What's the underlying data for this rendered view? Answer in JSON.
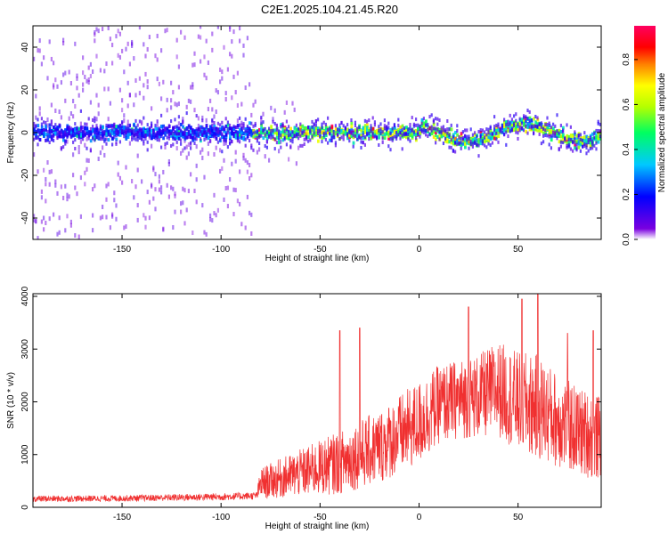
{
  "title": "C2E1.2025.104.21.45.R20",
  "colors": {
    "snr_line": "#f03030",
    "axis": "#000000",
    "background": "#ffffff"
  },
  "chart_data": [
    {
      "type": "heatmap",
      "xlabel": "Height of straight line (km)",
      "ylabel": "Frequency (Hz)",
      "xlim": [
        -195,
        92
      ],
      "ylim": [
        -50,
        50
      ],
      "xticks": [
        -150,
        -100,
        -50,
        0,
        50
      ],
      "yticks": [
        -40,
        -20,
        0,
        20,
        40
      ],
      "grid": false,
      "colorbar": {
        "label": "Normalized spectral amplitude",
        "range": [
          0,
          0.95
        ],
        "ticks": [
          "0.0",
          "0.2",
          "0.4",
          "0.6",
          "0.8"
        ],
        "colormap": "rainbow (violet→blue→cyan→green→yellow→red→magenta)",
        "placement": "right"
      },
      "features": [
        {
          "description_x_range": [
            -195,
            -85
          ],
          "band_hz": [
            -5,
            5
          ],
          "amplitude_level": 0.25,
          "scatter_spread_hz": 50
        },
        {
          "description_x_range": [
            -85,
            92
          ],
          "band_hz": [
            -5,
            5
          ],
          "amplitude_level": 0.55,
          "scatter_spread_hz": 15
        }
      ]
    },
    {
      "type": "line",
      "xlabel": "Height of straight line (km)",
      "ylabel": "SNR (10 * v/v)",
      "xlim": [
        -195,
        92
      ],
      "ylim": [
        0,
        4050
      ],
      "xticks": [
        -150,
        -100,
        -50,
        0,
        50
      ],
      "yticks": [
        0,
        1000,
        2000,
        3000,
        4000
      ],
      "grid": false,
      "series": [
        {
          "color": "#f03030",
          "envelope_x": [
            -195,
            -150,
            -100,
            -82,
            -80,
            -60,
            -40,
            -20,
            0,
            10,
            20,
            30,
            40,
            50,
            60,
            70,
            80,
            92
          ],
          "envelope_mean": [
            160,
            170,
            200,
            220,
            450,
            650,
            850,
            1150,
            1600,
            1950,
            2050,
            2100,
            2250,
            2000,
            1900,
            1650,
            1450,
            1300
          ],
          "envelope_amplitude": [
            60,
            60,
            70,
            70,
            300,
            450,
            600,
            700,
            800,
            750,
            750,
            800,
            900,
            950,
            1000,
            900,
            850,
            800
          ],
          "peaks": [
            [
              -40,
              3350
            ],
            [
              -30,
              3400
            ],
            [
              25,
              3800
            ],
            [
              52,
              3950
            ],
            [
              60,
              4050
            ],
            [
              75,
              3300
            ],
            [
              88,
              3350
            ]
          ]
        }
      ]
    }
  ]
}
